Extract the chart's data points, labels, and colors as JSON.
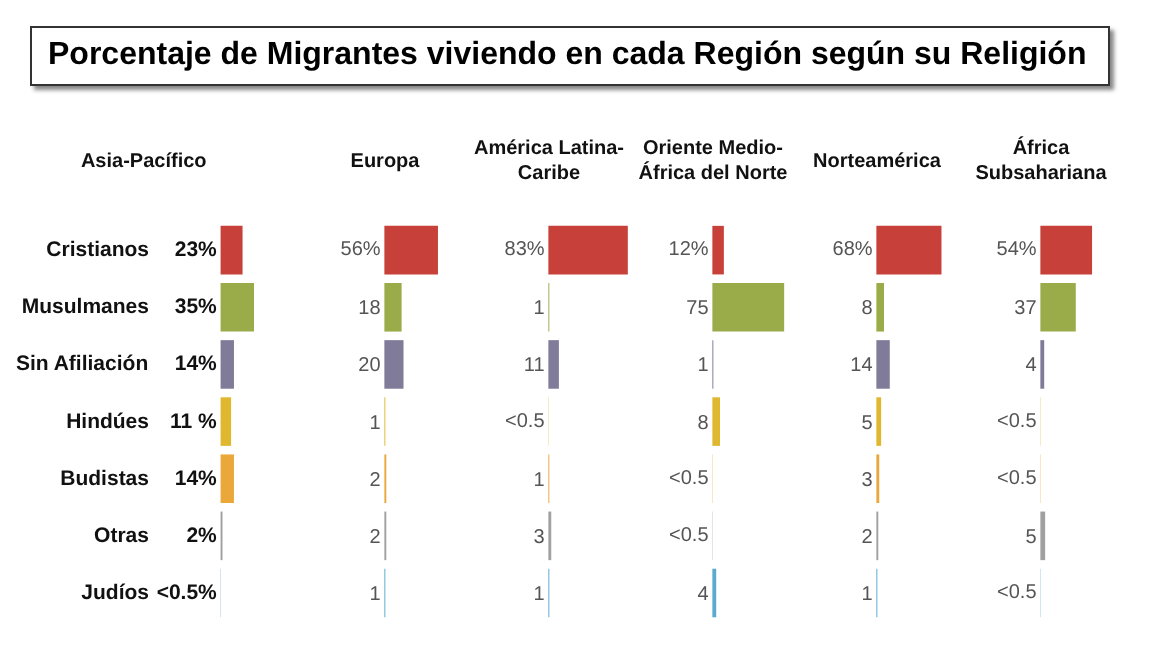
{
  "chart_data": [
    {
      "type": "other",
      "title": "Porcentaje de Migrantes  viviendo en cada Región según su Religión"
    },
    {
      "type": "bar",
      "orientation": "horizontal",
      "title": "Asia-Pacífico",
      "categories": [
        "Cristianos",
        "Musulmanes",
        "Sin Afiliación",
        "Hindúes",
        "Budistas",
        "Otras",
        "Judíos"
      ],
      "values": [
        23,
        35,
        14,
        11,
        14,
        2,
        0.3
      ],
      "value_labels": [
        "23%",
        "35%",
        "14%",
        "11 %",
        "14%",
        "2%",
        "<0.5%"
      ],
      "colors": [
        "#c8403a",
        "#9aab4a",
        "#7f7b99",
        "#e0b830",
        "#eba83a",
        "#a0a0a0",
        "#5aaad0"
      ]
    },
    {
      "type": "bar",
      "orientation": "horizontal",
      "title": "Europa",
      "categories": [
        null,
        null,
        null,
        null,
        null,
        null,
        null
      ],
      "values": [
        56,
        18,
        20,
        1,
        2,
        2,
        1
      ],
      "value_labels": [
        "56%",
        "18",
        "20",
        "1",
        "2",
        "2",
        "1"
      ],
      "colors": [
        "#c8403a",
        "#9aab4a",
        "#7f7b99",
        "#e0b830",
        "#eba83a",
        "#a0a0a0",
        "#5aaad0"
      ]
    },
    {
      "type": "bar",
      "orientation": "horizontal",
      "title": "América Latina-Caribe",
      "categories": [
        null,
        null,
        null,
        null,
        null,
        null,
        null
      ],
      "values": [
        83,
        1,
        11,
        0.3,
        1,
        3,
        1
      ],
      "value_labels": [
        "83%",
        "1",
        "11",
        "<0.5",
        "1",
        "3",
        "1"
      ],
      "colors": [
        "#c8403a",
        "#9aab4a",
        "#7f7b99",
        "#e0b830",
        "#eba83a",
        "#a0a0a0",
        "#5aaad0"
      ]
    },
    {
      "type": "bar",
      "orientation": "horizontal",
      "title": "Oriente Medio-África del Norte",
      "categories": [
        null,
        null,
        null,
        null,
        null,
        null,
        null
      ],
      "values": [
        12,
        75,
        1,
        8,
        0.3,
        0.3,
        4
      ],
      "value_labels": [
        "12%",
        "75",
        "1",
        "8",
        "<0.5",
        "<0.5",
        "4"
      ],
      "colors": [
        "#c8403a",
        "#9aab4a",
        "#7f7b99",
        "#e0b830",
        "#eba83a",
        "#a0a0a0",
        "#5aaad0"
      ]
    },
    {
      "type": "bar",
      "orientation": "horizontal",
      "title": "Norteamérica",
      "categories": [
        null,
        null,
        null,
        null,
        null,
        null,
        null
      ],
      "values": [
        68,
        8,
        14,
        5,
        3,
        2,
        1
      ],
      "value_labels": [
        "68%",
        "8",
        "14",
        "5",
        "3",
        "2",
        "1"
      ],
      "colors": [
        "#c8403a",
        "#9aab4a",
        "#7f7b99",
        "#e0b830",
        "#eba83a",
        "#a0a0a0",
        "#5aaad0"
      ]
    },
    {
      "type": "bar",
      "orientation": "horizontal",
      "title": "África Subsahariana",
      "categories": [
        null,
        null,
        null,
        null,
        null,
        null,
        null
      ],
      "values": [
        54,
        37,
        4,
        0.3,
        0.3,
        5,
        0.3
      ],
      "value_labels": [
        "54%",
        "37",
        "4",
        "<0.5",
        "<0.5",
        "5",
        "<0.5"
      ],
      "colors": [
        "#c8403a",
        "#9aab4a",
        "#7f7b99",
        "#e0b830",
        "#eba83a",
        "#a0a0a0",
        "#5aaad0"
      ]
    }
  ]
}
